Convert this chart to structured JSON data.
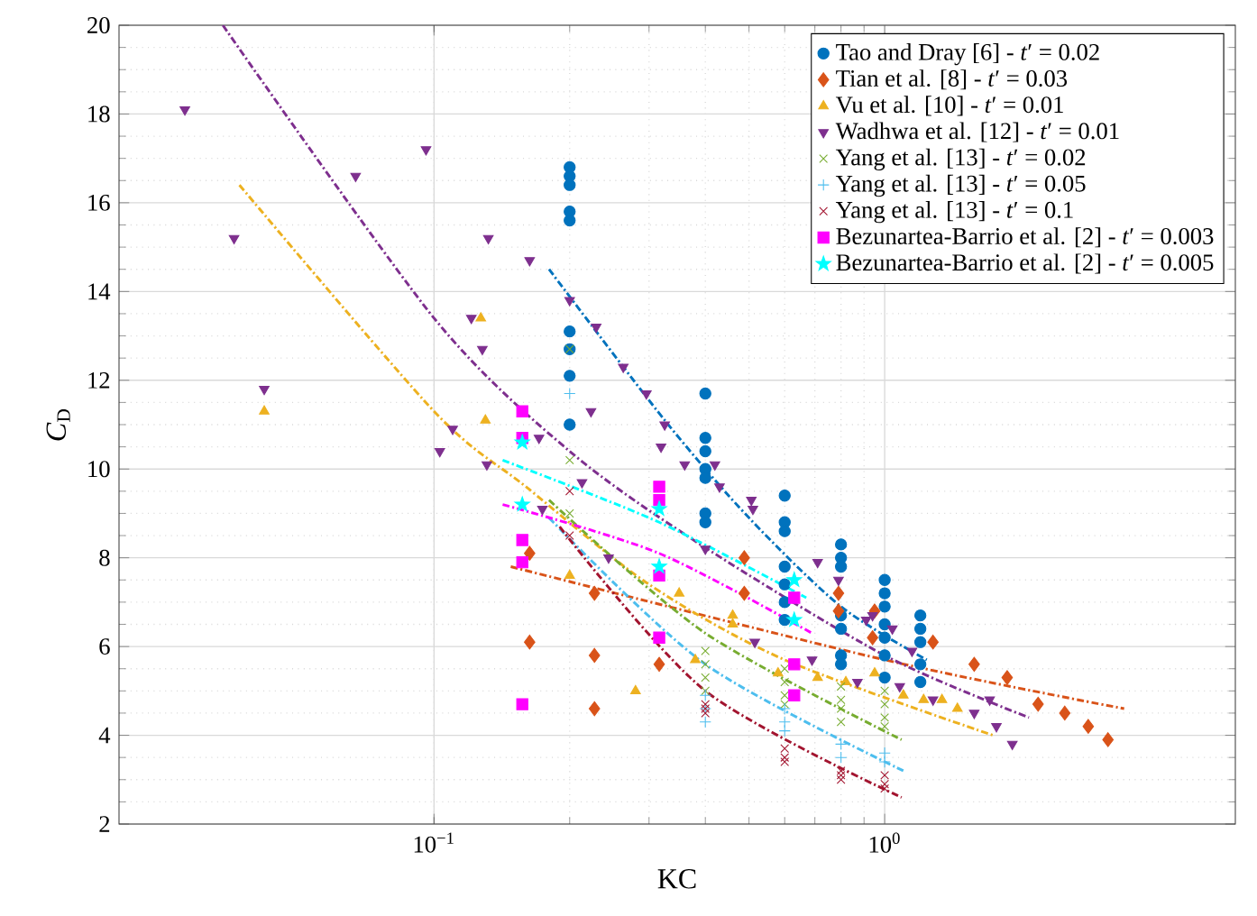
{
  "chart_data": {
    "type": "scatter",
    "xlabel": "KC",
    "ylabel": "*C*$_{D}$",
    "log": "x",
    "grid": true,
    "legend": "top right",
    "xlim": [
      0.02,
      6
    ],
    "ylim": [
      2,
      20
    ],
    "xticks": [
      {
        "value": 0.1,
        "label": "10$^{−1}$"
      },
      {
        "value": 1,
        "label": "10$^{0}$"
      }
    ],
    "yticks": [
      2,
      4,
      6,
      8,
      10,
      12,
      14,
      16,
      18,
      20
    ],
    "series": [
      {
        "name": "Tao and Dray [6] - *t*′ = 0.02",
        "color": "#0072bd",
        "marker": "circle",
        "x": [
          0.2,
          0.2,
          0.2,
          0.2,
          0.2,
          0.2,
          0.2,
          0.2,
          0.2,
          0.4,
          0.4,
          0.4,
          0.4,
          0.4,
          0.4,
          0.4,
          0.6,
          0.6,
          0.6,
          0.6,
          0.6,
          0.6,
          0.6,
          0.8,
          0.8,
          0.8,
          0.8,
          0.8,
          0.8,
          0.8,
          1.0,
          1.0,
          1.0,
          1.0,
          1.0,
          1.0,
          1.0,
          1.2,
          1.2,
          1.2,
          1.2,
          1.2
        ],
        "values": [
          16.8,
          16.6,
          16.4,
          15.8,
          15.6,
          13.1,
          12.7,
          12.1,
          11.0,
          11.7,
          10.7,
          10.4,
          10.0,
          9.8,
          9.0,
          8.8,
          9.4,
          8.8,
          8.6,
          7.8,
          7.4,
          7.0,
          6.6,
          8.3,
          8.0,
          7.8,
          6.7,
          6.4,
          5.8,
          5.6,
          7.5,
          7.2,
          6.9,
          6.5,
          6.2,
          5.8,
          5.3,
          6.7,
          6.4,
          6.1,
          5.6,
          5.2
        ]
      },
      {
        "name": "Tian et al. [8] - *t*′ = 0.03",
        "color": "#d95319",
        "marker": "diamond",
        "x": [
          0.163,
          0.163,
          0.227,
          0.227,
          0.227,
          0.316,
          0.488,
          0.488,
          0.79,
          0.79,
          0.94,
          0.95,
          1.28,
          1.58,
          1.87,
          2.19,
          2.51,
          2.83,
          3.13
        ],
        "values": [
          8.1,
          6.1,
          7.2,
          5.8,
          4.6,
          5.6,
          8.0,
          7.2,
          7.2,
          6.8,
          6.2,
          6.8,
          6.1,
          5.6,
          5.3,
          4.7,
          4.5,
          4.2,
          3.9
        ]
      },
      {
        "name": "Vu et al. [10] - *t*′ = 0.01",
        "color": "#edb120",
        "marker": "triangle",
        "x": [
          0.042,
          0.127,
          0.13,
          0.2,
          0.28,
          0.35,
          0.38,
          0.46,
          0.46,
          0.58,
          0.71,
          0.82,
          0.95,
          1.1,
          1.22,
          1.34,
          1.45
        ],
        "values": [
          11.3,
          13.4,
          11.1,
          7.6,
          5.0,
          7.2,
          5.7,
          6.7,
          6.5,
          5.4,
          5.3,
          5.2,
          5.4,
          4.9,
          4.8,
          4.8,
          4.6
        ]
      },
      {
        "name": "Wadhwa et al. [12] - *t*′ = 0.01",
        "color": "#7e2f8e",
        "marker": "triangle-down",
        "x": [
          0.028,
          0.036,
          0.042,
          0.067,
          0.096,
          0.103,
          0.11,
          0.121,
          0.128,
          0.131,
          0.132,
          0.163,
          0.171,
          0.174,
          0.2,
          0.213,
          0.223,
          0.229,
          0.244,
          0.263,
          0.296,
          0.319,
          0.325,
          0.36,
          0.4,
          0.42,
          0.43,
          0.506,
          0.515,
          0.51,
          0.69,
          0.71,
          0.79,
          0.87,
          0.91,
          0.94,
          1.04,
          1.08,
          1.15,
          1.28,
          1.58,
          1.71,
          1.77,
          1.92
        ],
        "values": [
          18.1,
          15.2,
          11.8,
          16.6,
          17.2,
          10.4,
          10.9,
          13.4,
          12.7,
          10.1,
          15.2,
          14.7,
          10.7,
          9.1,
          13.8,
          9.7,
          11.3,
          13.2,
          8.0,
          12.3,
          11.7,
          10.5,
          11.0,
          10.1,
          8.2,
          10.1,
          9.6,
          9.3,
          6.1,
          9.1,
          5.7,
          7.9,
          7.5,
          5.2,
          6.6,
          6.7,
          6.4,
          5.1,
          5.9,
          4.8,
          4.5,
          4.8,
          4.2,
          3.8
        ]
      },
      {
        "name": "Yang et al. [13] - *t*′ = 0.02",
        "color": "#77ac30",
        "marker": "cross",
        "x": [
          0.2,
          0.2,
          0.2,
          0.4,
          0.4,
          0.4,
          0.4,
          0.6,
          0.6,
          0.6,
          0.6,
          0.8,
          0.8,
          0.8,
          0.8,
          1.0,
          1.0,
          1.0,
          1.0
        ],
        "values": [
          12.7,
          10.2,
          9.0,
          5.9,
          5.6,
          5.3,
          5.0,
          5.5,
          5.2,
          4.9,
          4.7,
          5.1,
          4.8,
          4.6,
          4.3,
          5.0,
          4.7,
          4.4,
          4.2
        ]
      },
      {
        "name": "Yang et al. [13] - *t*′ = 0.05",
        "color": "#4dbeee",
        "marker": "plus",
        "x": [
          0.2,
          0.4,
          0.4,
          0.4,
          0.6,
          0.6,
          0.6,
          0.8,
          0.8,
          1.0,
          1.0
        ],
        "values": [
          11.7,
          4.9,
          4.6,
          4.3,
          4.6,
          4.3,
          4.1,
          3.8,
          3.5,
          3.6,
          3.4
        ]
      },
      {
        "name": "Yang et al. [13] - *t*′ = 0.1",
        "color": "#a2142f",
        "marker": "cross",
        "x": [
          0.2,
          0.2,
          0.4,
          0.4,
          0.4,
          0.6,
          0.6,
          0.6,
          0.8,
          0.8,
          0.8,
          1.0,
          1.0,
          1.0
        ],
        "values": [
          9.5,
          8.5,
          4.7,
          4.6,
          4.5,
          3.7,
          3.5,
          3.4,
          3.2,
          3.1,
          3.0,
          3.1,
          2.9,
          2.8
        ]
      },
      {
        "name": "Bezunartea-Barrio et al. [2] - *t*′ = 0.003",
        "color": "#ff00ff",
        "marker": "square",
        "x": [
          0.157,
          0.157,
          0.157,
          0.157,
          0.157,
          0.316,
          0.316,
          0.316,
          0.316,
          0.63,
          0.63,
          0.63
        ],
        "values": [
          11.3,
          10.7,
          8.4,
          7.9,
          4.7,
          9.6,
          9.3,
          7.6,
          6.2,
          7.1,
          5.6,
          4.9
        ]
      },
      {
        "name": "Bezunartea-Barrio et al. [2] - *t*′ = 0.005",
        "color": "#00ffff",
        "marker": "star",
        "x": [
          0.157,
          0.157,
          0.316,
          0.316,
          0.63,
          0.63
        ],
        "values": [
          10.6,
          9.2,
          9.1,
          7.8,
          7.5,
          6.6
        ]
      },
      {
        "type": "line",
        "color": "#0072bd",
        "line_style": "dashdot",
        "x": [
          0.18,
          0.325,
          0.5,
          0.8,
          1.24
        ],
        "values": [
          14.5,
          11.1,
          8.9,
          6.9,
          5.7
        ]
      },
      {
        "type": "line",
        "color": "#d95319",
        "line_style": "dashdot",
        "x": [
          0.148,
          1.0,
          3.4
        ],
        "values": [
          7.8,
          5.7,
          4.6
        ]
      },
      {
        "type": "line",
        "color": "#edb120",
        "line_style": "dashdot",
        "x": [
          0.037,
          0.1,
          0.16,
          0.3,
          0.6,
          1.74
        ],
        "values": [
          16.4,
          11.3,
          9.6,
          7.4,
          5.7,
          4.0
        ]
      },
      {
        "type": "line",
        "color": "#7e2f8e",
        "line_style": "dashdot",
        "x": [
          0.034,
          0.1,
          0.2,
          0.39,
          1.0,
          2.09
        ],
        "values": [
          20,
          13.4,
          10.4,
          8.3,
          5.8,
          4.4
        ]
      },
      {
        "type": "line",
        "color": "#77ac30",
        "line_style": "dashdot",
        "x": [
          0.18,
          0.4,
          1.09
        ],
        "values": [
          9.3,
          6.3,
          3.9
        ]
      },
      {
        "type": "line",
        "color": "#4dbeee",
        "line_style": "dashdot",
        "x": [
          0.18,
          0.4,
          1.1
        ],
        "values": [
          8.9,
          5.6,
          3.2
        ]
      },
      {
        "type": "line",
        "color": "#a2142f",
        "line_style": "dashdot",
        "x": [
          0.19,
          0.4,
          1.09
        ],
        "values": [
          8.7,
          5.0,
          2.6
        ]
      },
      {
        "type": "line",
        "color": "#ff00ff",
        "line_style": "dashdot",
        "x": [
          0.142,
          0.316,
          0.69
        ],
        "values": [
          9.2,
          8.1,
          6.3
        ]
      },
      {
        "type": "line",
        "color": "#00ffff",
        "line_style": "dashdot",
        "x": [
          0.142,
          0.316,
          0.67
        ],
        "values": [
          10.2,
          8.8,
          7.1
        ]
      }
    ]
  }
}
